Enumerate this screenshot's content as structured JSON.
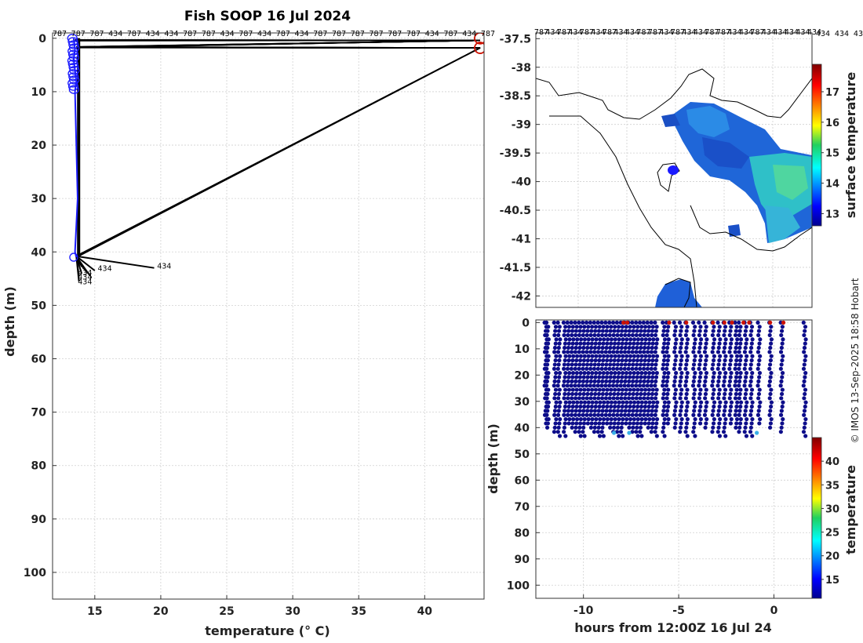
{
  "title": "Fish SOOP 16 Jul 2024",
  "credit": "© IMOS 13-Sep-2025 18:58 Hobart",
  "colors": {
    "profile_blue": "#1a1aff",
    "track_black": "#000000",
    "surface_red": "#cc1100"
  },
  "chart_data": [
    {
      "type": "line",
      "name": "temperature-depth profiles",
      "xlabel": "temperature (° C)",
      "ylabel": "depth (m)",
      "xlim": [
        11.8,
        44.5
      ],
      "ylim": [
        105,
        -1
      ],
      "xticks": [
        15,
        20,
        25,
        30,
        35,
        40
      ],
      "yticks": [
        0,
        10,
        20,
        30,
        40,
        50,
        60,
        70,
        80,
        90,
        100
      ],
      "top_labels": [
        "787",
        "787",
        "787",
        "434",
        "787",
        "434",
        "434",
        "787",
        "787",
        "434",
        "787",
        "434",
        "787",
        "434",
        "787",
        "787",
        "787",
        "787",
        "787",
        "787",
        "434",
        "787",
        "434",
        "787"
      ],
      "bottom_label": "434",
      "series": [
        {
          "name": "profile",
          "x": [
            13.4,
            13.5,
            13.4,
            13.5,
            13.6,
            13.5,
            13.6,
            13.7,
            13.5,
            13.6
          ],
          "y": [
            0,
            2,
            4,
            6,
            8,
            10,
            20,
            30,
            40,
            41
          ]
        },
        {
          "name": "track",
          "x": [
            13.4,
            44.2,
            13.4,
            44.2,
            13.5,
            44.2,
            13.6
          ],
          "y": [
            0.5,
            0.5,
            1.8,
            1.8,
            0.4,
            1.8,
            40.8
          ]
        },
        {
          "name": "bottom-fan",
          "x": [
            13.6,
            19.5,
            13.6,
            15.0,
            13.6,
            14.0,
            13.6,
            13.8,
            13.6,
            13.8
          ],
          "y": [
            40.8,
            43.0,
            40.8,
            43.5,
            40.8,
            44.0,
            40.8,
            44.5,
            40.8,
            45.5
          ]
        }
      ],
      "surface_points": {
        "x": [
          44.2,
          44.2
        ],
        "y": [
          0,
          1.8
        ]
      },
      "fan_labels": [
        {
          "text": "434",
          "x": 19.6,
          "y": 42.5
        },
        {
          "text": "434",
          "x": 15.1,
          "y": 43.0
        },
        {
          "text": "434",
          "x": 13.6,
          "y": 43.8
        },
        {
          "text": "434",
          "x": 13.6,
          "y": 44.6
        },
        {
          "text": "434",
          "x": 13.6,
          "y": 45.5
        }
      ]
    },
    {
      "type": "heatmap",
      "name": "surface temperature map",
      "ylabel": "",
      "xlim": [
        144.0,
        150.0
      ],
      "ylim": [
        -42.2,
        -37.4
      ],
      "yticks": [
        -37.5,
        -38,
        -38.5,
        -39,
        -39.5,
        -40,
        -40.5,
        -41,
        -41.5,
        -42
      ],
      "ytick_labels": [
        "-37.5",
        "-38",
        "-38.5",
        "-39",
        "-39.5",
        "-40",
        "-40.5",
        "-41",
        "-41.5",
        "-42"
      ],
      "top_labels": [
        "787",
        "434",
        "787",
        "434",
        "787",
        "434",
        "787",
        "434",
        "434",
        "787",
        "787",
        "434",
        "787",
        "434",
        "434",
        "787",
        "787",
        "434",
        "434",
        "787",
        "434",
        "434",
        "434",
        "434",
        "434"
      ],
      "top_labels_visible": [
        "434",
        "434",
        "434"
      ],
      "colorbar": {
        "label": "surface temperature",
        "range": [
          12.6,
          17.9
        ],
        "ticks": [
          13,
          14,
          15,
          16,
          17
        ]
      },
      "vessel_position": {
        "lon": 146.8,
        "lat": -39.7
      }
    },
    {
      "type": "scatter",
      "name": "depth-time section",
      "xlabel": "hours from 12:00Z 16 Jul 24",
      "ylabel": "depth (m)",
      "xlim": [
        -12.5,
        2.0
      ],
      "ylim": [
        105,
        -1
      ],
      "xticks": [
        -10,
        -5,
        0
      ],
      "yticks": [
        0,
        10,
        20,
        30,
        40,
        50,
        60,
        70,
        80,
        90,
        100
      ],
      "colorbar": {
        "label": "temperature",
        "range": [
          11.0,
          45.0
        ],
        "ticks": [
          15,
          20,
          25,
          30,
          35,
          40
        ]
      },
      "casts_hours": [
        -12.0,
        -11.9,
        -11.5,
        -11.3,
        -11.0,
        -10.8,
        -10.6,
        -10.4,
        -10.2,
        -10.0,
        -9.8,
        -9.6,
        -9.4,
        -9.2,
        -9.0,
        -8.8,
        -8.6,
        -8.4,
        -8.2,
        -8.0,
        -7.8,
        -7.6,
        -7.4,
        -7.2,
        -7.0,
        -6.8,
        -6.6,
        -6.4,
        -6.2,
        -5.8,
        -5.6,
        -5.2,
        -4.9,
        -4.6,
        -4.2,
        -3.9,
        -3.6,
        -3.2,
        -2.9,
        -2.6,
        -2.3,
        -2.0,
        -1.8,
        -1.5,
        -1.2,
        -0.8,
        -0.2,
        0.4,
        1.6
      ],
      "surface_hot_hours": [
        -7.9,
        -7.7,
        -5.5,
        -4.6,
        -3.2,
        -2.6,
        -2.2,
        -1.6,
        -1.3,
        -0.2,
        0.5
      ]
    }
  ]
}
